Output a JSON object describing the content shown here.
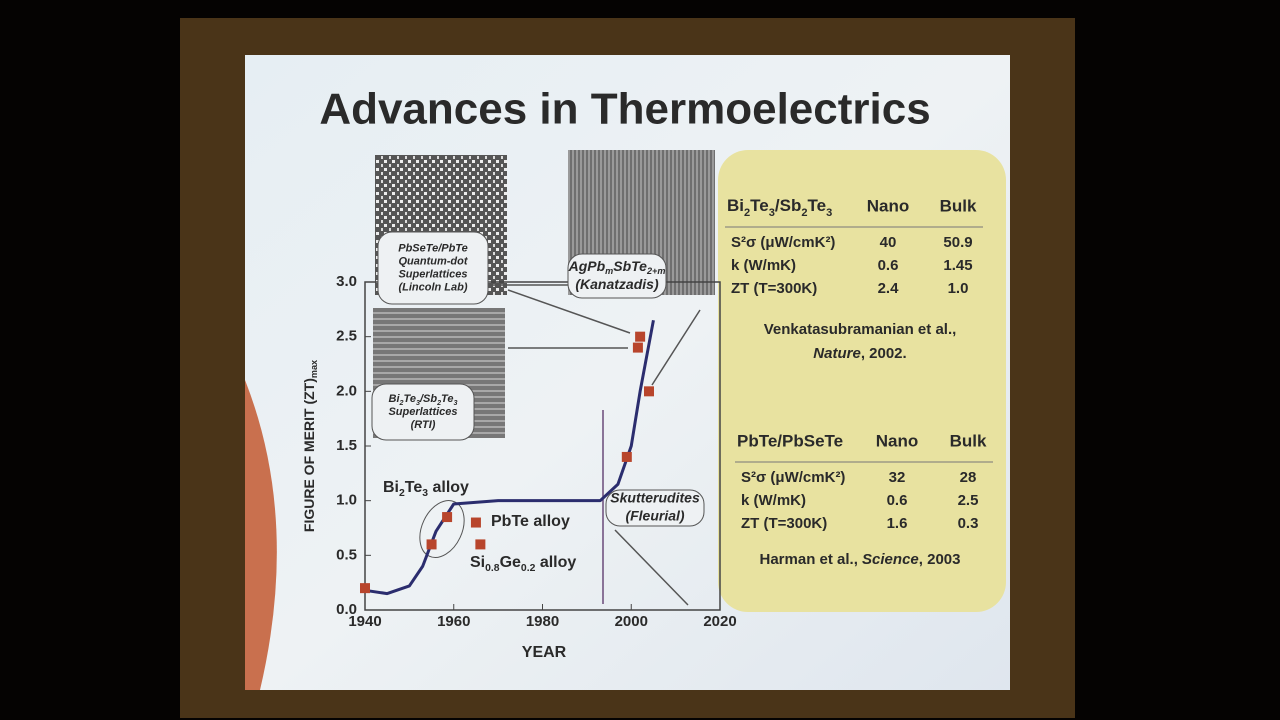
{
  "title": "Advances in Thermoelectrics",
  "chart_data": {
    "type": "scatter",
    "xlabel": "YEAR",
    "ylabel": [
      "FIGURE OF MERIT (ZT)",
      "max"
    ],
    "xlim": [
      1940,
      2020
    ],
    "xticks": [
      1940,
      1960,
      1980,
      2000,
      2020
    ],
    "ylim": [
      0,
      3
    ],
    "yticks": [
      {
        "value": 0,
        "label": "0.0"
      },
      0.5,
      {
        "value": 1,
        "label": "1.0"
      },
      1.5,
      {
        "value": 2,
        "label": "2.0"
      },
      2.5,
      {
        "value": 3,
        "label": "3.0"
      }
    ],
    "series": [
      {
        "color": "#b8452c",
        "x": [
          1940,
          1955,
          1958.5,
          1965,
          1966,
          1999,
          2001.5,
          2002,
          2004
        ],
        "values": [
          0.2,
          0.6,
          0.85,
          0.8,
          0.6,
          1.4,
          2.4,
          2.5,
          2.0
        ]
      }
    ],
    "curve": {
      "color": "#2b2d6e",
      "x": [
        1940,
        1945,
        1950,
        1953,
        1956,
        1960,
        1970,
        1993,
        1997,
        2000,
        2002,
        2005
      ],
      "values": [
        0.18,
        0.15,
        0.22,
        0.4,
        0.72,
        0.97,
        1.0,
        1.0,
        1.15,
        1.5,
        2.0,
        2.65
      ]
    },
    "annotations": [
      [
        "Bi",
        "2",
        "Te",
        "3",
        " alloy"
      ],
      [
        "PbTe alloy"
      ],
      [
        "Si",
        "0.8",
        "Ge",
        "0.2",
        " alloy"
      ]
    ],
    "callouts": [
      {
        "lines": [
          "PbSeTe/PbTe",
          "Quantum-dot",
          "Superlattices",
          "(Lincoln Lab)"
        ]
      },
      {
        "lines": [
          [
            "AgPb",
            "m",
            "SbTe",
            "2+m"
          ],
          [
            "(Kanatzadis)"
          ]
        ]
      },
      {
        "lines": [
          [
            "Bi",
            "2",
            "Te",
            "3",
            "/Sb",
            "2",
            "Te",
            "3"
          ],
          [
            "Superlattices"
          ],
          [
            "(RTI)"
          ]
        ]
      },
      {
        "lines": [
          "Skutterudites",
          "(Fleurial)"
        ]
      }
    ]
  },
  "tables": [
    {
      "header": [
        [
          "Bi",
          "2",
          "Te",
          "3",
          "/Sb",
          "2",
          "Te",
          "3"
        ],
        "Nano",
        "Bulk"
      ],
      "rows": [
        [
          "S²σ (μW/cmK²)",
          "40",
          "50.9"
        ],
        [
          "k (W/mK)",
          "0.6",
          "1.45"
        ],
        [
          "ZT (T=300K)",
          "2.4",
          "1.0"
        ]
      ],
      "citation": [
        "Venkatasubramanian et al.,",
        "Nature",
        ", 2002."
      ]
    },
    {
      "header": [
        "PbTe/PbSeTe",
        "Nano",
        "Bulk"
      ],
      "rows": [
        [
          "S²σ (μW/cmK²)",
          "32",
          "28"
        ],
        [
          "k (W/mK)",
          "0.6",
          "2.5"
        ],
        [
          "ZT (T=300K)",
          "1.6",
          "0.3"
        ]
      ],
      "citation": [
        "Harman et al., ",
        "Science",
        ", 2003"
      ]
    }
  ]
}
